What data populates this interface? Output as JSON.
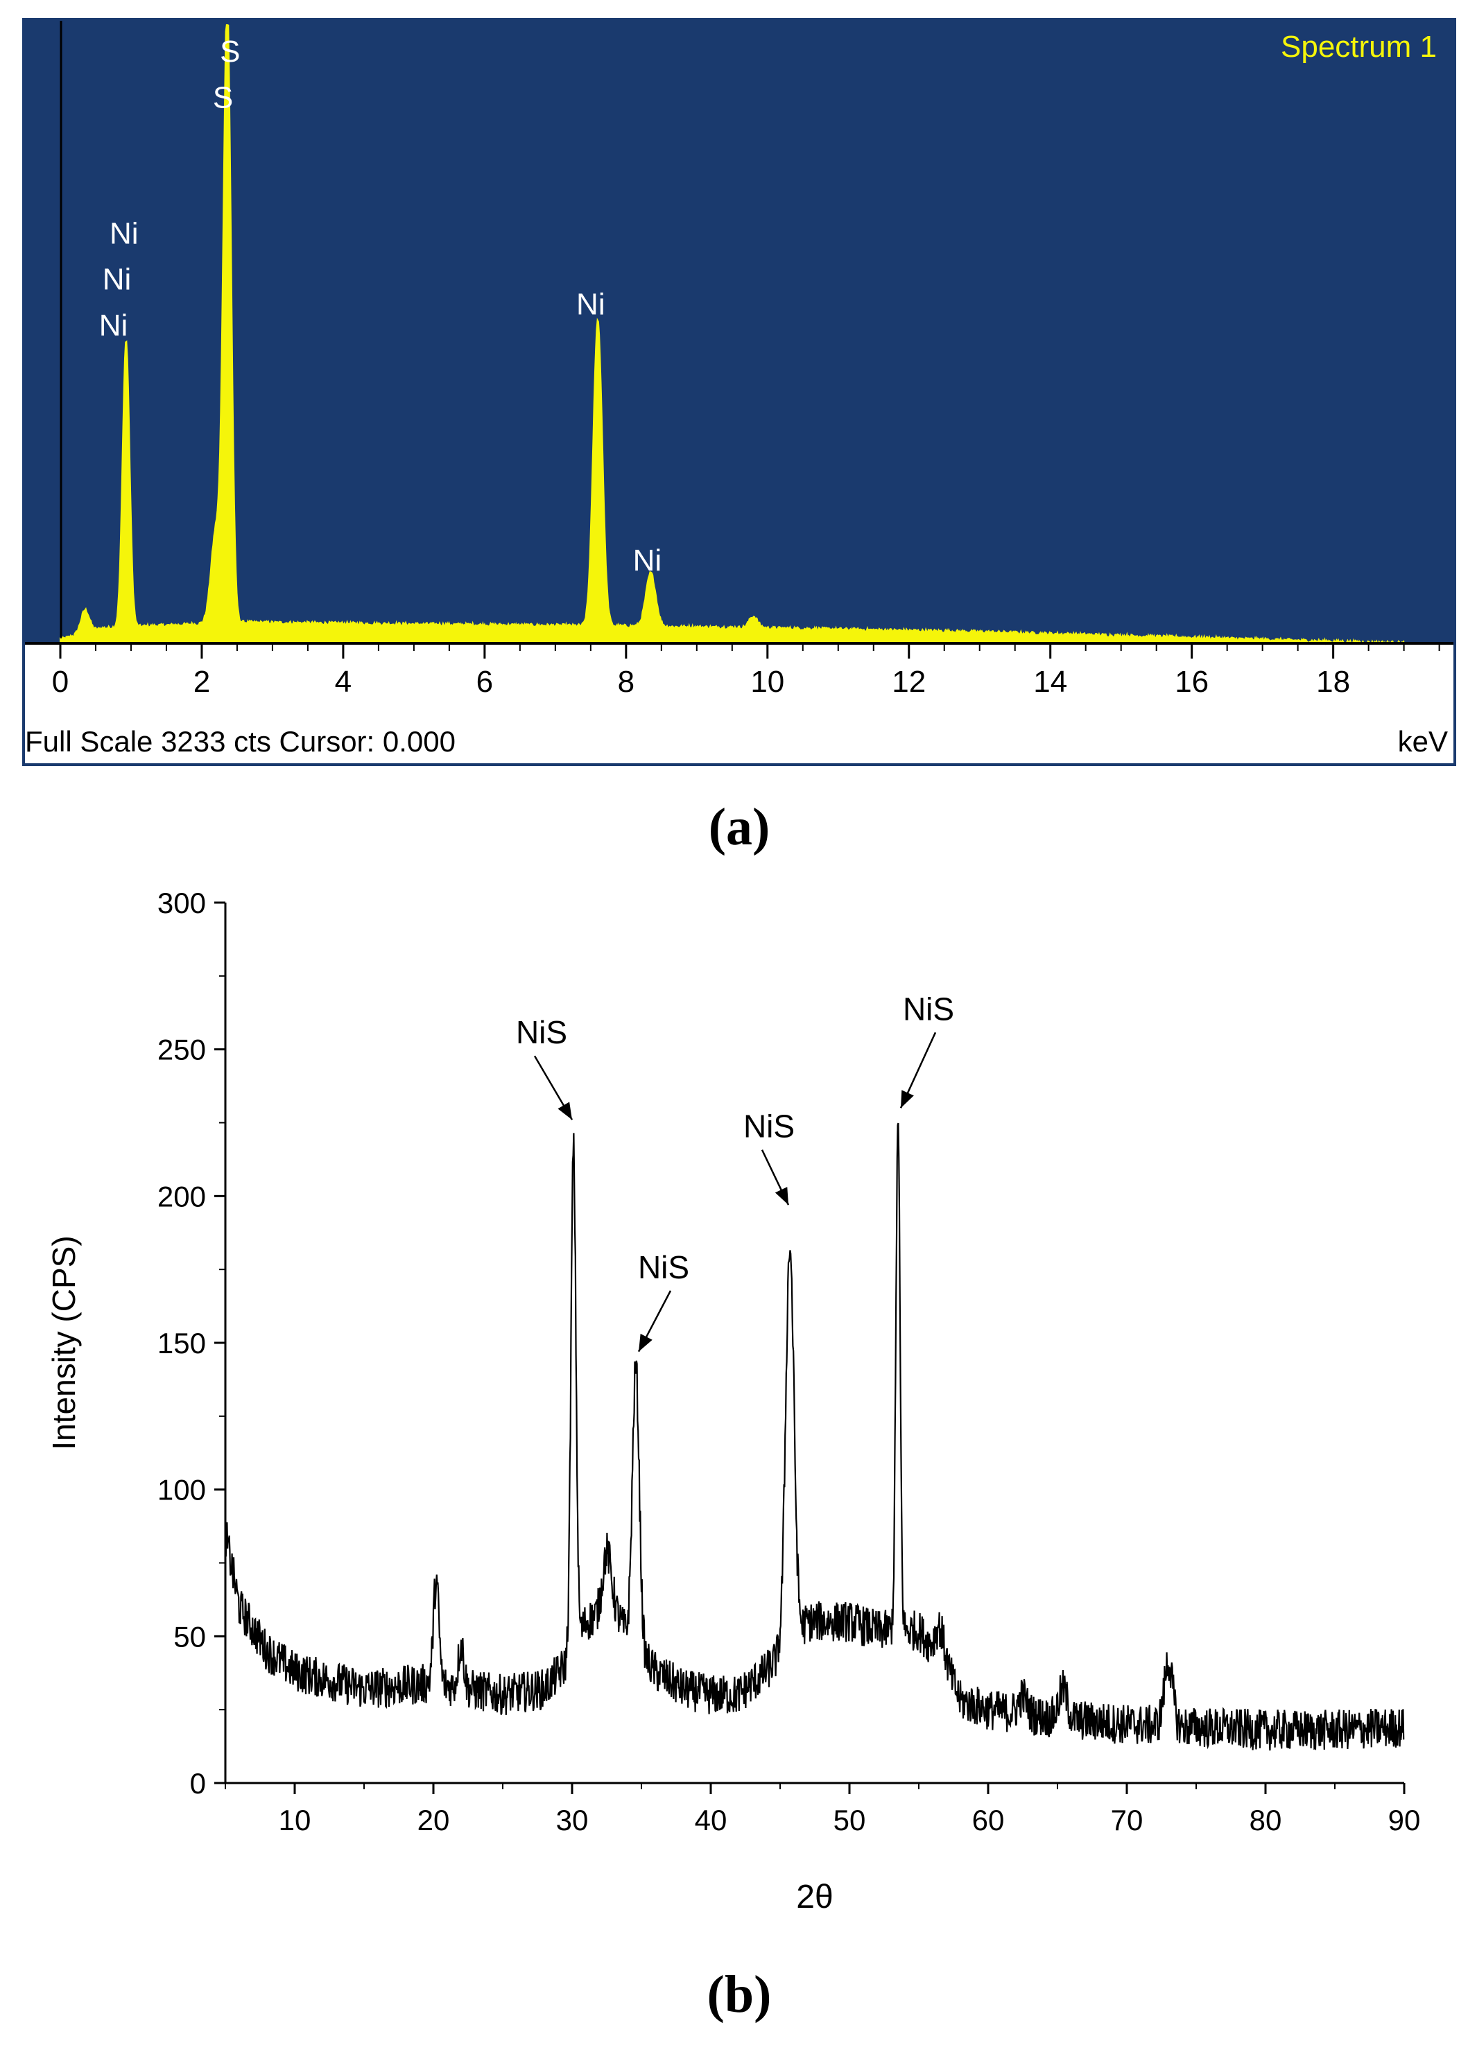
{
  "panels": {
    "a_label": "(a)",
    "b_label": "(b)"
  },
  "chart_data": [
    {
      "type": "area",
      "panel": "a",
      "title": "Spectrum 1",
      "xlabel": "keV",
      "status_text": "Full Scale 3233 cts Cursor: 0.000",
      "xlim": [
        -0.5,
        19.7
      ],
      "ylim": [
        0,
        3233
      ],
      "x_ticks": [
        0,
        2,
        4,
        6,
        8,
        10,
        12,
        14,
        16,
        18
      ],
      "colors": {
        "background": "#1a3a6e",
        "spectrum": "#f5f50a",
        "label": "#ffffff",
        "title": "#f5f50a",
        "axis": "#ffffff"
      },
      "peaks": [
        {
          "x": 0.35,
          "y": 120,
          "w": 0.06
        },
        {
          "x": 0.93,
          "y": 1500,
          "w": 0.05
        },
        {
          "x": 2.2,
          "y": 480,
          "w": 0.07
        },
        {
          "x": 2.36,
          "y": 3233,
          "w": 0.055
        },
        {
          "x": 7.6,
          "y": 1600,
          "w": 0.065
        },
        {
          "x": 8.35,
          "y": 280,
          "w": 0.07
        },
        {
          "x": 9.8,
          "y": 60,
          "w": 0.06
        }
      ],
      "background_counts": [
        [
          0,
          20
        ],
        [
          0.6,
          80
        ],
        [
          2.5,
          110
        ],
        [
          5,
          100
        ],
        [
          8,
          90
        ],
        [
          10,
          80
        ],
        [
          13,
          60
        ],
        [
          15,
          40
        ],
        [
          17.5,
          15
        ],
        [
          18.5,
          5
        ],
        [
          19.5,
          0
        ]
      ],
      "annotations": [
        {
          "text": "S",
          "x": 2.4,
          "y": 3040
        },
        {
          "text": "S",
          "x": 2.3,
          "y": 2800
        },
        {
          "text": "Ni",
          "x": 0.9,
          "y": 2090
        },
        {
          "text": "Ni",
          "x": 0.8,
          "y": 1850
        },
        {
          "text": "Ni",
          "x": 0.75,
          "y": 1610
        },
        {
          "text": "Ni",
          "x": 7.5,
          "y": 1720
        },
        {
          "text": "Ni",
          "x": 8.3,
          "y": 380
        }
      ]
    },
    {
      "type": "line",
      "panel": "b",
      "xlabel": "2θ",
      "ylabel": "Intensity (CPS)",
      "xlim": [
        5,
        90
      ],
      "ylim": [
        0,
        300
      ],
      "x_ticks": [
        10,
        20,
        30,
        40,
        50,
        60,
        70,
        80,
        90
      ],
      "y_ticks": [
        0,
        50,
        100,
        150,
        200,
        250,
        300
      ],
      "line_color": "#000000",
      "series": [
        {
          "baseline": [
            [
              5,
              85
            ],
            [
              6,
              60
            ],
            [
              8,
              45
            ],
            [
              10,
              38
            ],
            [
              15,
              32
            ],
            [
              20,
              34
            ],
            [
              25,
              30
            ],
            [
              28,
              32
            ],
            [
              29.5,
              40
            ],
            [
              31,
              55
            ],
            [
              33,
              60
            ],
            [
              34,
              50
            ],
            [
              36,
              38
            ],
            [
              38,
              32
            ],
            [
              40,
              30
            ],
            [
              42,
              30
            ],
            [
              44,
              38
            ],
            [
              47,
              55
            ],
            [
              50,
              55
            ],
            [
              52,
              52
            ],
            [
              55,
              52
            ],
            [
              57,
              40
            ],
            [
              58,
              28
            ],
            [
              60,
              25
            ],
            [
              65,
              22
            ],
            [
              70,
              20
            ],
            [
              75,
              19
            ],
            [
              80,
              18
            ],
            [
              85,
              18
            ],
            [
              90,
              19
            ]
          ],
          "peaks": [
            {
              "x": 20.2,
              "y": 35,
              "w": 0.2
            },
            {
              "x": 22,
              "y": 15,
              "w": 0.2
            },
            {
              "x": 30.1,
              "y": 170,
              "w": 0.18
            },
            {
              "x": 32.5,
              "y": 20,
              "w": 0.3
            },
            {
              "x": 34.6,
              "y": 95,
              "w": 0.25
            },
            {
              "x": 45.7,
              "y": 135,
              "w": 0.3
            },
            {
              "x": 53.5,
              "y": 172,
              "w": 0.15
            },
            {
              "x": 56.5,
              "y": 10,
              "w": 0.3
            },
            {
              "x": 62.5,
              "y": 6,
              "w": 0.3
            },
            {
              "x": 65.4,
              "y": 10,
              "w": 0.3
            },
            {
              "x": 73,
              "y": 22,
              "w": 0.3
            }
          ],
          "noise_amplitude": 7
        }
      ],
      "annotations": [
        {
          "text": "NiS",
          "tx": 27.8,
          "ty": 252,
          "ax": 30.0,
          "ay": 226
        },
        {
          "text": "NiS",
          "tx": 36.6,
          "ty": 172,
          "ax": 34.8,
          "ay": 147
        },
        {
          "text": "NiS",
          "tx": 44.2,
          "ty": 220,
          "ax": 45.6,
          "ay": 197
        },
        {
          "text": "NiS",
          "tx": 55.7,
          "ty": 260,
          "ax": 53.7,
          "ay": 230
        }
      ]
    }
  ]
}
